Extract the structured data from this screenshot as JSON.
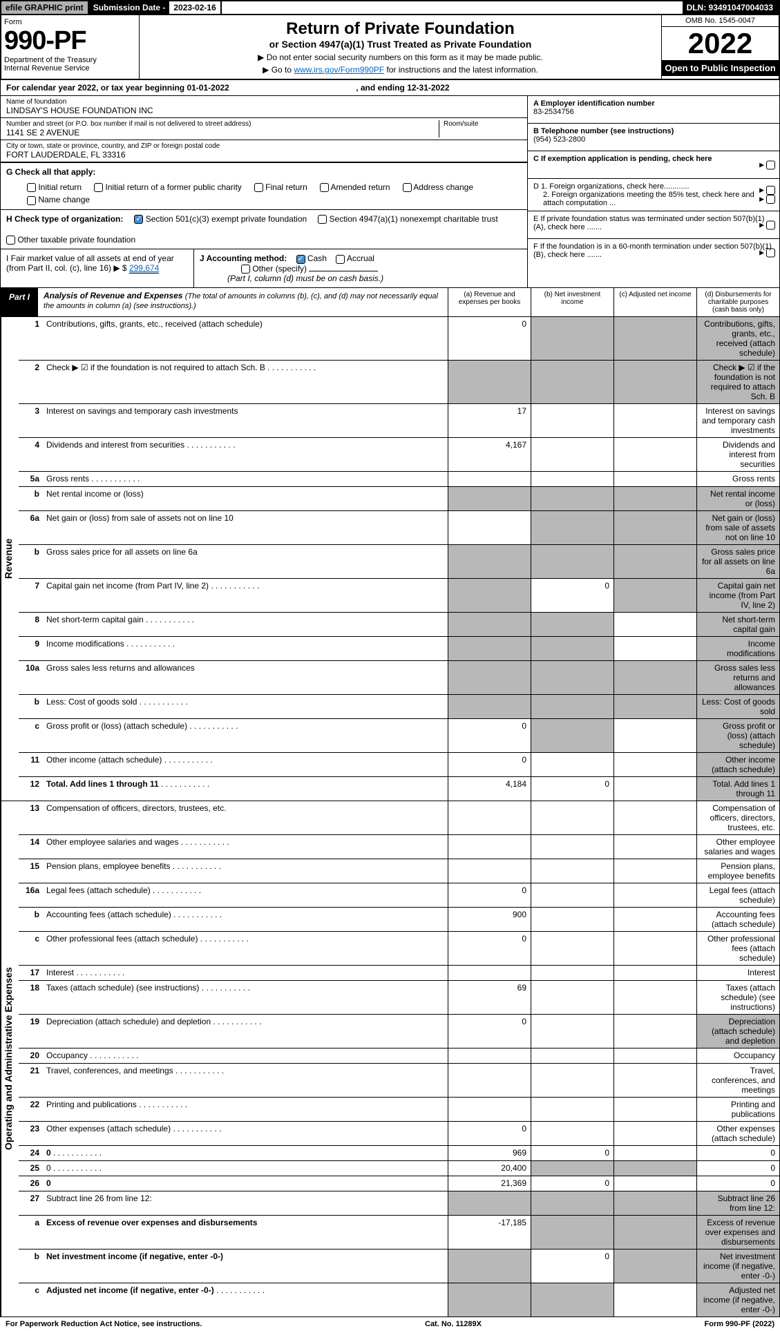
{
  "topBar": {
    "efile": "efile GRAPHIC print",
    "submissionLabel": "Submission Date -",
    "submissionDate": "2023-02-16",
    "dln": "DLN: 93491047004033"
  },
  "header": {
    "formLabel": "Form",
    "formNumber": "990-PF",
    "dept1": "Department of the Treasury",
    "dept2": "Internal Revenue Service",
    "title": "Return of Private Foundation",
    "subtitle": "or Section 4947(a)(1) Trust Treated as Private Foundation",
    "note1": "▶ Do not enter social security numbers on this form as it may be made public.",
    "note2": "▶ Go to ",
    "noteLink": "www.irs.gov/Form990PF",
    "note3": " for instructions and the latest information.",
    "omb": "OMB No. 1545-0047",
    "year": "2022",
    "openPublic": "Open to Public Inspection"
  },
  "calYear": {
    "prefix": "For calendar year 2022, or tax year beginning ",
    "begin": "01-01-2022",
    "mid": " , and ending ",
    "end": "12-31-2022"
  },
  "foundation": {
    "nameLabel": "Name of foundation",
    "name": "LINDSAY'S HOUSE FOUNDATION INC",
    "addrLabel": "Number and street (or P.O. box number if mail is not delivered to street address)",
    "addr": "1141 SE 2 AVENUE",
    "roomLabel": "Room/suite",
    "cityLabel": "City or town, state or province, country, and ZIP or foreign postal code",
    "city": "FORT LAUDERDALE, FL  33316"
  },
  "rightInfo": {
    "aLabel": "A Employer identification number",
    "aVal": "83-2534756",
    "bLabel": "B Telephone number (see instructions)",
    "bVal": "(954) 523-2800",
    "cLabel": "C If exemption application is pending, check here",
    "d1": "D 1. Foreign organizations, check here............",
    "d2": "2. Foreign organizations meeting the 85% test, check here and attach computation ...",
    "eLabel": "E  If private foundation status was terminated under section 507(b)(1)(A), check here .......",
    "fLabel": "F  If the foundation is in a 60-month termination under section 507(b)(1)(B), check here ......."
  },
  "secG": {
    "label": "G Check all that apply:",
    "opts": [
      "Initial return",
      "Initial return of a former public charity",
      "Final return",
      "Amended return",
      "Address change",
      "Name change"
    ]
  },
  "secH": {
    "label": "H Check type of organization:",
    "opt1": "Section 501(c)(3) exempt private foundation",
    "opt2": "Section 4947(a)(1) nonexempt charitable trust",
    "opt3": "Other taxable private foundation"
  },
  "secI": {
    "label": "I Fair market value of all assets at end of year (from Part II, col. (c), line 16) ▶ $",
    "val": "299,674"
  },
  "secJ": {
    "label": "J Accounting method:",
    "cash": "Cash",
    "accrual": "Accrual",
    "other": "Other (specify)",
    "note": "(Part I, column (d) must be on cash basis.)"
  },
  "part1": {
    "tab": "Part I",
    "title": "Analysis of Revenue and Expenses",
    "titleNote": "(The total of amounts in columns (b), (c), and (d) may not necessarily equal the amounts in column (a) (see instructions).)",
    "colA": "(a) Revenue and expenses per books",
    "colB": "(b) Net investment income",
    "colC": "(c) Adjusted net income",
    "colD": "(d) Disbursements for charitable purposes (cash basis only)"
  },
  "sideLabels": {
    "rev": "Revenue",
    "exp": "Operating and Administrative Expenses"
  },
  "rows": [
    {
      "n": "1",
      "d": "Contributions, gifts, grants, etc., received (attach schedule)",
      "a": "0",
      "bG": true,
      "cG": true,
      "dG": true
    },
    {
      "n": "2",
      "d": "Check ▶ ☑ if the foundation is not required to attach Sch. B",
      "dots": true,
      "aG": true,
      "bG": true,
      "cG": true,
      "dG": true
    },
    {
      "n": "3",
      "d": "Interest on savings and temporary cash investments",
      "a": "17"
    },
    {
      "n": "4",
      "d": "Dividends and interest from securities",
      "dots": true,
      "a": "4,167"
    },
    {
      "n": "5a",
      "d": "Gross rents",
      "dots": true
    },
    {
      "n": "b",
      "d": "Net rental income or (loss)",
      "aG": true,
      "bG": true,
      "cG": true,
      "dG": true
    },
    {
      "n": "6a",
      "d": "Net gain or (loss) from sale of assets not on line 10",
      "bG": true,
      "cG": true,
      "dG": true
    },
    {
      "n": "b",
      "d": "Gross sales price for all assets on line 6a",
      "aG": true,
      "bG": true,
      "cG": true,
      "dG": true
    },
    {
      "n": "7",
      "d": "Capital gain net income (from Part IV, line 2)",
      "dots": true,
      "aG": true,
      "b": "0",
      "cG": true,
      "dG": true
    },
    {
      "n": "8",
      "d": "Net short-term capital gain",
      "dots": true,
      "aG": true,
      "bG": true,
      "dG": true
    },
    {
      "n": "9",
      "d": "Income modifications",
      "dots": true,
      "aG": true,
      "bG": true,
      "dG": true
    },
    {
      "n": "10a",
      "d": "Gross sales less returns and allowances",
      "aG": true,
      "bG": true,
      "cG": true,
      "dG": true
    },
    {
      "n": "b",
      "d": "Less: Cost of goods sold",
      "dots": true,
      "aG": true,
      "bG": true,
      "cG": true,
      "dG": true
    },
    {
      "n": "c",
      "d": "Gross profit or (loss) (attach schedule)",
      "dots": true,
      "a": "0",
      "bG": true,
      "dG": true
    },
    {
      "n": "11",
      "d": "Other income (attach schedule)",
      "dots": true,
      "a": "0",
      "dG": true
    },
    {
      "n": "12",
      "d": "Total. Add lines 1 through 11",
      "dots": true,
      "bold": true,
      "a": "4,184",
      "b": "0",
      "dG": true
    }
  ],
  "expRows": [
    {
      "n": "13",
      "d": "Compensation of officers, directors, trustees, etc."
    },
    {
      "n": "14",
      "d": "Other employee salaries and wages",
      "dots": true
    },
    {
      "n": "15",
      "d": "Pension plans, employee benefits",
      "dots": true
    },
    {
      "n": "16a",
      "d": "Legal fees (attach schedule)",
      "dots": true,
      "a": "0"
    },
    {
      "n": "b",
      "d": "Accounting fees (attach schedule)",
      "dots": true,
      "a": "900"
    },
    {
      "n": "c",
      "d": "Other professional fees (attach schedule)",
      "dots": true,
      "a": "0"
    },
    {
      "n": "17",
      "d": "Interest",
      "dots": true
    },
    {
      "n": "18",
      "d": "Taxes (attach schedule) (see instructions)",
      "dots": true,
      "a": "69"
    },
    {
      "n": "19",
      "d": "Depreciation (attach schedule) and depletion",
      "dots": true,
      "a": "0",
      "dG": true
    },
    {
      "n": "20",
      "d": "Occupancy",
      "dots": true
    },
    {
      "n": "21",
      "d": "Travel, conferences, and meetings",
      "dots": true
    },
    {
      "n": "22",
      "d": "Printing and publications",
      "dots": true
    },
    {
      "n": "23",
      "d": "Other expenses (attach schedule)",
      "dots": true,
      "a": "0"
    },
    {
      "n": "24",
      "d": "0",
      "dots": true,
      "bold": true,
      "a": "969",
      "b": "0"
    },
    {
      "n": "25",
      "d": "0",
      "dots": true,
      "a": "20,400",
      "bG": true,
      "cG": true
    },
    {
      "n": "26",
      "d": "0",
      "bold": true,
      "a": "21,369",
      "b": "0"
    },
    {
      "n": "27",
      "d": "Subtract line 26 from line 12:",
      "aG": true,
      "bG": true,
      "cG": true,
      "dG": true
    },
    {
      "n": "a",
      "d": "Excess of revenue over expenses and disbursements",
      "bold": true,
      "a": "-17,185",
      "bG": true,
      "cG": true,
      "dG": true
    },
    {
      "n": "b",
      "d": "Net investment income (if negative, enter -0-)",
      "bold": true,
      "aG": true,
      "b": "0",
      "cG": true,
      "dG": true
    },
    {
      "n": "c",
      "d": "Adjusted net income (if negative, enter -0-)",
      "dots": true,
      "bold": true,
      "aG": true,
      "bG": true,
      "dG": true
    }
  ],
  "footer": {
    "left": "For Paperwork Reduction Act Notice, see instructions.",
    "mid": "Cat. No. 11289X",
    "right": "Form 990-PF (2022)"
  }
}
